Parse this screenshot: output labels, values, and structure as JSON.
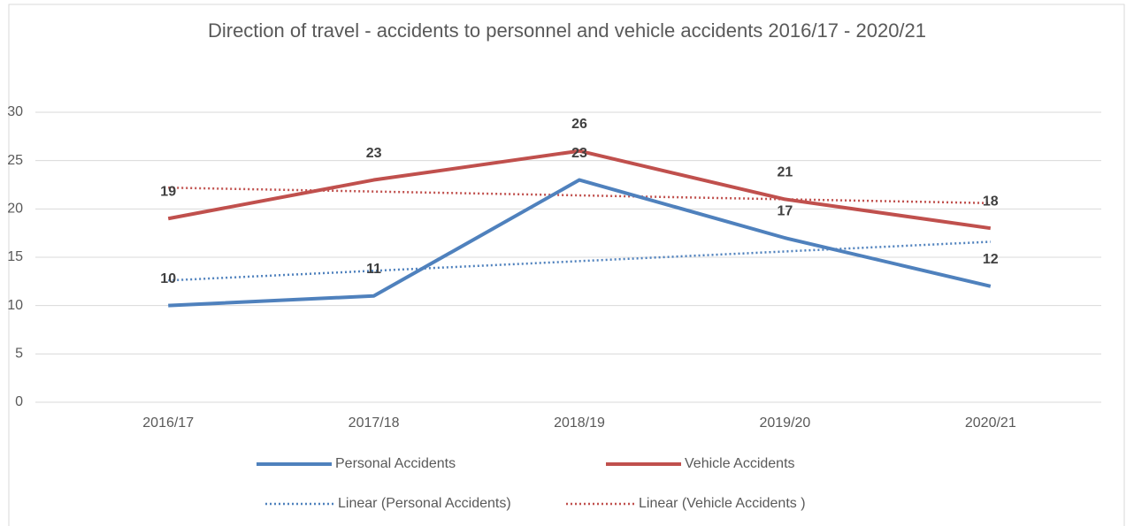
{
  "chart_data": {
    "type": "line",
    "title": "Direction of travel - accidents to personnel and vehicle accidents  2016/17 - 2020/21",
    "categories": [
      "2016/17",
      "2017/18",
      "2018/19",
      "2019/20",
      "2020/21"
    ],
    "series": [
      {
        "name": "Personal Accidents",
        "color": "#4f81bd",
        "style": "solid",
        "values": [
          10,
          11,
          23,
          17,
          12
        ],
        "data_labels": true
      },
      {
        "name": "Vehicle Accidents",
        "color": "#c0504d",
        "style": "solid",
        "values": [
          19,
          23,
          26,
          21,
          18
        ],
        "data_labels": true
      },
      {
        "name": "Linear (Personal Accidents)",
        "color": "#4f81bd",
        "style": "dotted",
        "values": [
          12.6,
          13.6,
          14.6,
          15.6,
          16.6
        ],
        "data_labels": false
      },
      {
        "name": "Linear (Vehicle Accidents )",
        "color": "#c0504d",
        "style": "dotted",
        "values": [
          22.2,
          21.8,
          21.4,
          21.0,
          20.6
        ],
        "data_labels": false
      }
    ],
    "ylim": [
      0,
      30
    ],
    "yticks": [
      0,
      5,
      10,
      15,
      20,
      25,
      30
    ],
    "grid": true,
    "legend": "bottom"
  }
}
